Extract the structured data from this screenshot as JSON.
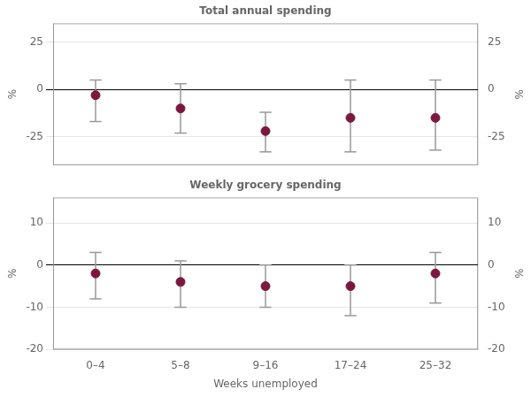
{
  "chart_data": [
    {
      "type": "dot",
      "title": "Total annual spending",
      "categories": [
        "0–4",
        "5–8",
        "9–16",
        "17–24",
        "25–32"
      ],
      "values": [
        -3,
        -10,
        -22,
        -15,
        -15
      ],
      "ci_upper": [
        5,
        3,
        -12,
        5,
        5
      ],
      "ci_lower": [
        -17,
        -23,
        -33,
        -33,
        -32
      ],
      "color": "#7b1840",
      "ci_color": "#999999",
      "ylabel": "%",
      "y2label": "%",
      "ylim": [
        -40,
        35
      ],
      "yticks": [
        -25,
        0,
        25
      ],
      "y2lim": [
        -40,
        35
      ],
      "y2ticks": [
        -25,
        0,
        25
      ],
      "grid": true,
      "reference_line": 0,
      "tick_labels": "y"
    },
    {
      "type": "dot",
      "title": "Weekly grocery spending",
      "categories": [
        "0–4",
        "5–8",
        "9–16",
        "17–24",
        "25–32"
      ],
      "values": [
        -2,
        -4,
        -5,
        -5,
        -2
      ],
      "ci_upper": [
        3,
        1,
        0,
        0,
        3
      ],
      "ci_lower": [
        -8,
        -10,
        -10,
        -12,
        -9
      ],
      "color": "#7b1840",
      "ci_color": "#999999",
      "xlabel": "Weeks unemployed",
      "ylabel": "%",
      "y2label": "%",
      "ylim": [
        -20,
        16
      ],
      "yticks": [
        -20,
        -10,
        0,
        10
      ],
      "y2lim": [
        -20,
        16
      ],
      "y2ticks": [
        -20,
        -10,
        0,
        10
      ],
      "grid": true,
      "reference_line": 0
    }
  ]
}
